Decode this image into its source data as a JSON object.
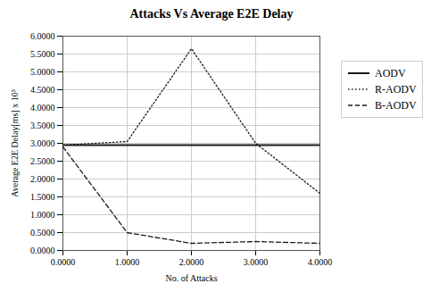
{
  "chart_data": {
    "type": "line",
    "title": "Attacks Vs Average E2E Delay",
    "xlabel": "No. of Attacks",
    "ylabel": "Average E2E Delay[ms] x 10³",
    "x": [
      0.0,
      1.0,
      2.0,
      3.0,
      4.0
    ],
    "series": [
      {
        "name": "AODV",
        "color": "#1a1a1a",
        "line_style": "solid",
        "values": [
          2.95,
          2.95,
          2.95,
          2.95,
          2.95
        ]
      },
      {
        "name": "R-AODV",
        "color": "#1a1a1a",
        "line_style": "dotted",
        "values": [
          2.95,
          3.05,
          5.65,
          3.0,
          1.6
        ]
      },
      {
        "name": "B-AODV",
        "color": "#1a1a1a",
        "line_style": "dashed",
        "values": [
          2.9,
          0.5,
          0.2,
          0.25,
          0.2
        ]
      }
    ],
    "xlim": [
      0.0,
      4.0
    ],
    "ylim": [
      0.0,
      6.0
    ],
    "xticks": [
      {
        "value": 0.0,
        "label": "0.0000"
      },
      {
        "value": 1.0,
        "label": "1.0000"
      },
      {
        "value": 2.0,
        "label": "2.0000"
      },
      {
        "value": 3.0,
        "label": "3.0000"
      },
      {
        "value": 4.0,
        "label": "4.0000"
      }
    ],
    "yticks": [
      {
        "value": 0.0,
        "label": "0.0000"
      },
      {
        "value": 0.5,
        "label": "0.5000"
      },
      {
        "value": 1.0,
        "label": "1.0000"
      },
      {
        "value": 1.5,
        "label": "1.5000"
      },
      {
        "value": 2.0,
        "label": "2.0000"
      },
      {
        "value": 2.5,
        "label": "2.5000"
      },
      {
        "value": 3.0,
        "label": "3.0000"
      },
      {
        "value": 3.5,
        "label": "3.5000"
      },
      {
        "value": 4.0,
        "label": "4.0000"
      },
      {
        "value": 4.5,
        "label": "4.5000"
      },
      {
        "value": 5.0,
        "label": "5.0000"
      },
      {
        "value": 5.5,
        "label": "5.5000"
      },
      {
        "value": 6.0,
        "label": "6.0000"
      }
    ],
    "grid": true,
    "legend": "right"
  }
}
